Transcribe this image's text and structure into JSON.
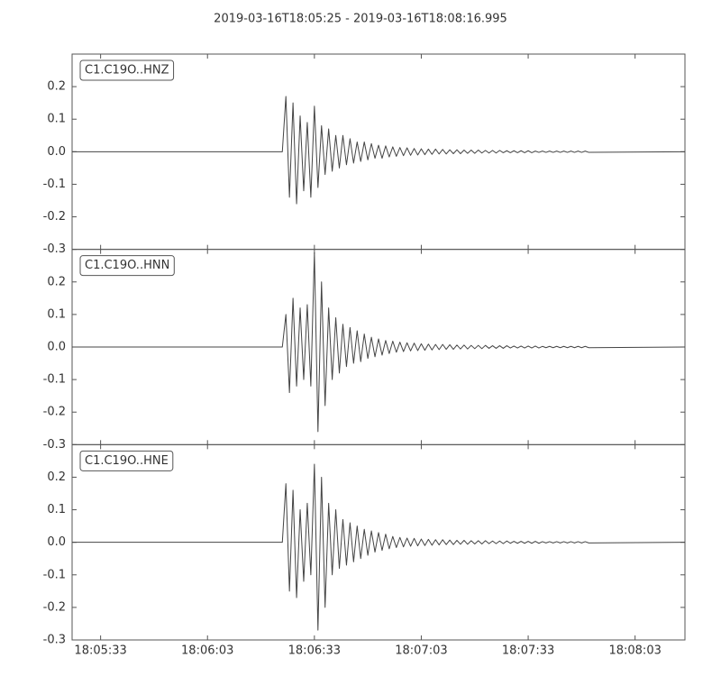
{
  "chart_data": {
    "type": "line",
    "title": "2019-03-16T18:05:25  -  2019-03-16T18:08:16.995",
    "x": [
      "18:05:25",
      "18:06:24",
      "18:06:25",
      "18:06:26",
      "18:06:27",
      "18:06:28",
      "18:06:29",
      "18:06:30",
      "18:06:31",
      "18:06:32",
      "18:06:33",
      "18:06:34",
      "18:06:35",
      "18:06:36",
      "18:06:37",
      "18:06:38",
      "18:06:39",
      "18:06:40",
      "18:06:41",
      "18:06:42",
      "18:06:43",
      "18:06:44",
      "18:06:45",
      "18:06:46",
      "18:06:47",
      "18:06:48",
      "18:06:49",
      "18:06:50",
      "18:06:51",
      "18:06:52",
      "18:06:53",
      "18:06:54",
      "18:06:55",
      "18:06:56",
      "18:06:57",
      "18:06:58",
      "18:06:59",
      "18:07:00",
      "18:07:01",
      "18:07:02",
      "18:07:03",
      "18:07:04",
      "18:07:05",
      "18:07:06",
      "18:07:07",
      "18:07:08",
      "18:07:09",
      "18:07:10",
      "18:07:11",
      "18:07:12",
      "18:07:13",
      "18:07:14",
      "18:07:15",
      "18:07:16",
      "18:07:17",
      "18:07:18",
      "18:07:19",
      "18:07:20",
      "18:07:21",
      "18:07:22",
      "18:07:23",
      "18:07:24",
      "18:07:25",
      "18:07:26",
      "18:07:27",
      "18:07:28",
      "18:07:29",
      "18:07:30",
      "18:07:31",
      "18:07:32",
      "18:07:33",
      "18:07:34",
      "18:07:35",
      "18:07:36",
      "18:07:37",
      "18:07:38",
      "18:07:39",
      "18:07:40",
      "18:07:41",
      "18:07:42",
      "18:07:43",
      "18:07:44",
      "18:07:45",
      "18:07:46",
      "18:07:47",
      "18:07:48",
      "18:07:49",
      "18:07:50",
      "18:08:16.995"
    ],
    "series": [
      {
        "name": "C1.C19O..HNZ",
        "color": "#444444",
        "values": [
          0,
          0,
          0.17,
          -0.14,
          0.15,
          -0.16,
          0.11,
          -0.12,
          0.09,
          -0.14,
          0.14,
          -0.11,
          0.08,
          -0.07,
          0.07,
          -0.06,
          0.05,
          -0.05,
          0.05,
          -0.04,
          0.04,
          -0.035,
          0.03,
          -0.03,
          0.03,
          -0.025,
          0.025,
          -0.02,
          0.02,
          -0.02,
          0.018,
          -0.016,
          0.015,
          -0.014,
          0.013,
          -0.012,
          0.012,
          -0.011,
          0.01,
          -0.01,
          0.009,
          -0.009,
          0.008,
          -0.008,
          0.008,
          -0.007,
          0.007,
          -0.007,
          0.006,
          -0.006,
          0.006,
          -0.006,
          0.005,
          -0.005,
          0.005,
          -0.005,
          0.005,
          -0.004,
          0.004,
          -0.004,
          0.004,
          -0.004,
          0.004,
          -0.003,
          0.003,
          -0.003,
          0.003,
          -0.003,
          0.003,
          -0.003,
          0.003,
          -0.003,
          0.002,
          -0.002,
          0.002,
          -0.002,
          0.002,
          -0.002,
          0.002,
          -0.002,
          0.002,
          -0.002,
          0.002,
          -0.002,
          0.002,
          -0.002,
          0.002,
          -0.002,
          0
        ]
      },
      {
        "name": "C1.C19O..HNN",
        "color": "#444444",
        "values": [
          0,
          0,
          0.1,
          -0.14,
          0.15,
          -0.12,
          0.12,
          -0.1,
          0.13,
          -0.12,
          0.29,
          -0.26,
          0.2,
          -0.18,
          0.12,
          -0.1,
          0.09,
          -0.08,
          0.07,
          -0.06,
          0.06,
          -0.05,
          0.05,
          -0.045,
          0.04,
          -0.035,
          0.03,
          -0.03,
          0.025,
          -0.025,
          0.02,
          -0.02,
          0.018,
          -0.016,
          0.015,
          -0.014,
          0.013,
          -0.012,
          0.012,
          -0.011,
          0.01,
          -0.01,
          0.009,
          -0.009,
          0.008,
          -0.008,
          0.008,
          -0.007,
          0.007,
          -0.007,
          0.006,
          -0.006,
          0.006,
          -0.006,
          0.005,
          -0.005,
          0.005,
          -0.005,
          0.005,
          -0.004,
          0.004,
          -0.004,
          0.004,
          -0.004,
          0.004,
          -0.003,
          0.003,
          -0.003,
          0.003,
          -0.003,
          0.003,
          -0.003,
          0.003,
          -0.003,
          0.002,
          -0.002,
          0.002,
          -0.002,
          0.002,
          -0.002,
          0.002,
          -0.002,
          0.002,
          -0.002,
          0.002,
          -0.002,
          0.002,
          -0.002,
          0
        ]
      },
      {
        "name": "C1.C19O..HNE",
        "color": "#444444",
        "values": [
          0,
          0,
          0.18,
          -0.15,
          0.16,
          -0.17,
          0.1,
          -0.12,
          0.12,
          -0.1,
          0.24,
          -0.27,
          0.2,
          -0.2,
          0.12,
          -0.1,
          0.1,
          -0.08,
          0.07,
          -0.07,
          0.06,
          -0.06,
          0.05,
          -0.05,
          0.04,
          -0.04,
          0.035,
          -0.03,
          0.03,
          -0.025,
          0.025,
          -0.02,
          0.018,
          -0.016,
          0.015,
          -0.014,
          0.013,
          -0.012,
          0.012,
          -0.011,
          0.01,
          -0.01,
          0.009,
          -0.009,
          0.008,
          -0.008,
          0.008,
          -0.007,
          0.007,
          -0.007,
          0.006,
          -0.006,
          0.006,
          -0.006,
          0.005,
          -0.005,
          0.005,
          -0.005,
          0.005,
          -0.004,
          0.004,
          -0.004,
          0.004,
          -0.004,
          0.004,
          -0.003,
          0.003,
          -0.003,
          0.003,
          -0.003,
          0.003,
          -0.003,
          0.003,
          -0.003,
          0.002,
          -0.002,
          0.002,
          -0.002,
          0.002,
          -0.002,
          0.002,
          -0.002,
          0.002,
          -0.002,
          0.002,
          -0.002,
          0.002,
          -0.002,
          0
        ]
      }
    ],
    "xlim": [
      "18:05:25",
      "18:08:16.995"
    ],
    "xticks": [
      "18:05:33",
      "18:06:03",
      "18:06:33",
      "18:07:03",
      "18:07:33",
      "18:08:03"
    ],
    "ylim": [
      -0.3,
      0.3
    ],
    "yticks": [
      -0.3,
      -0.2,
      -0.1,
      {
        "value": 0,
        "label": "0.0"
      },
      0.1,
      0.2
    ],
    "grid": false
  }
}
